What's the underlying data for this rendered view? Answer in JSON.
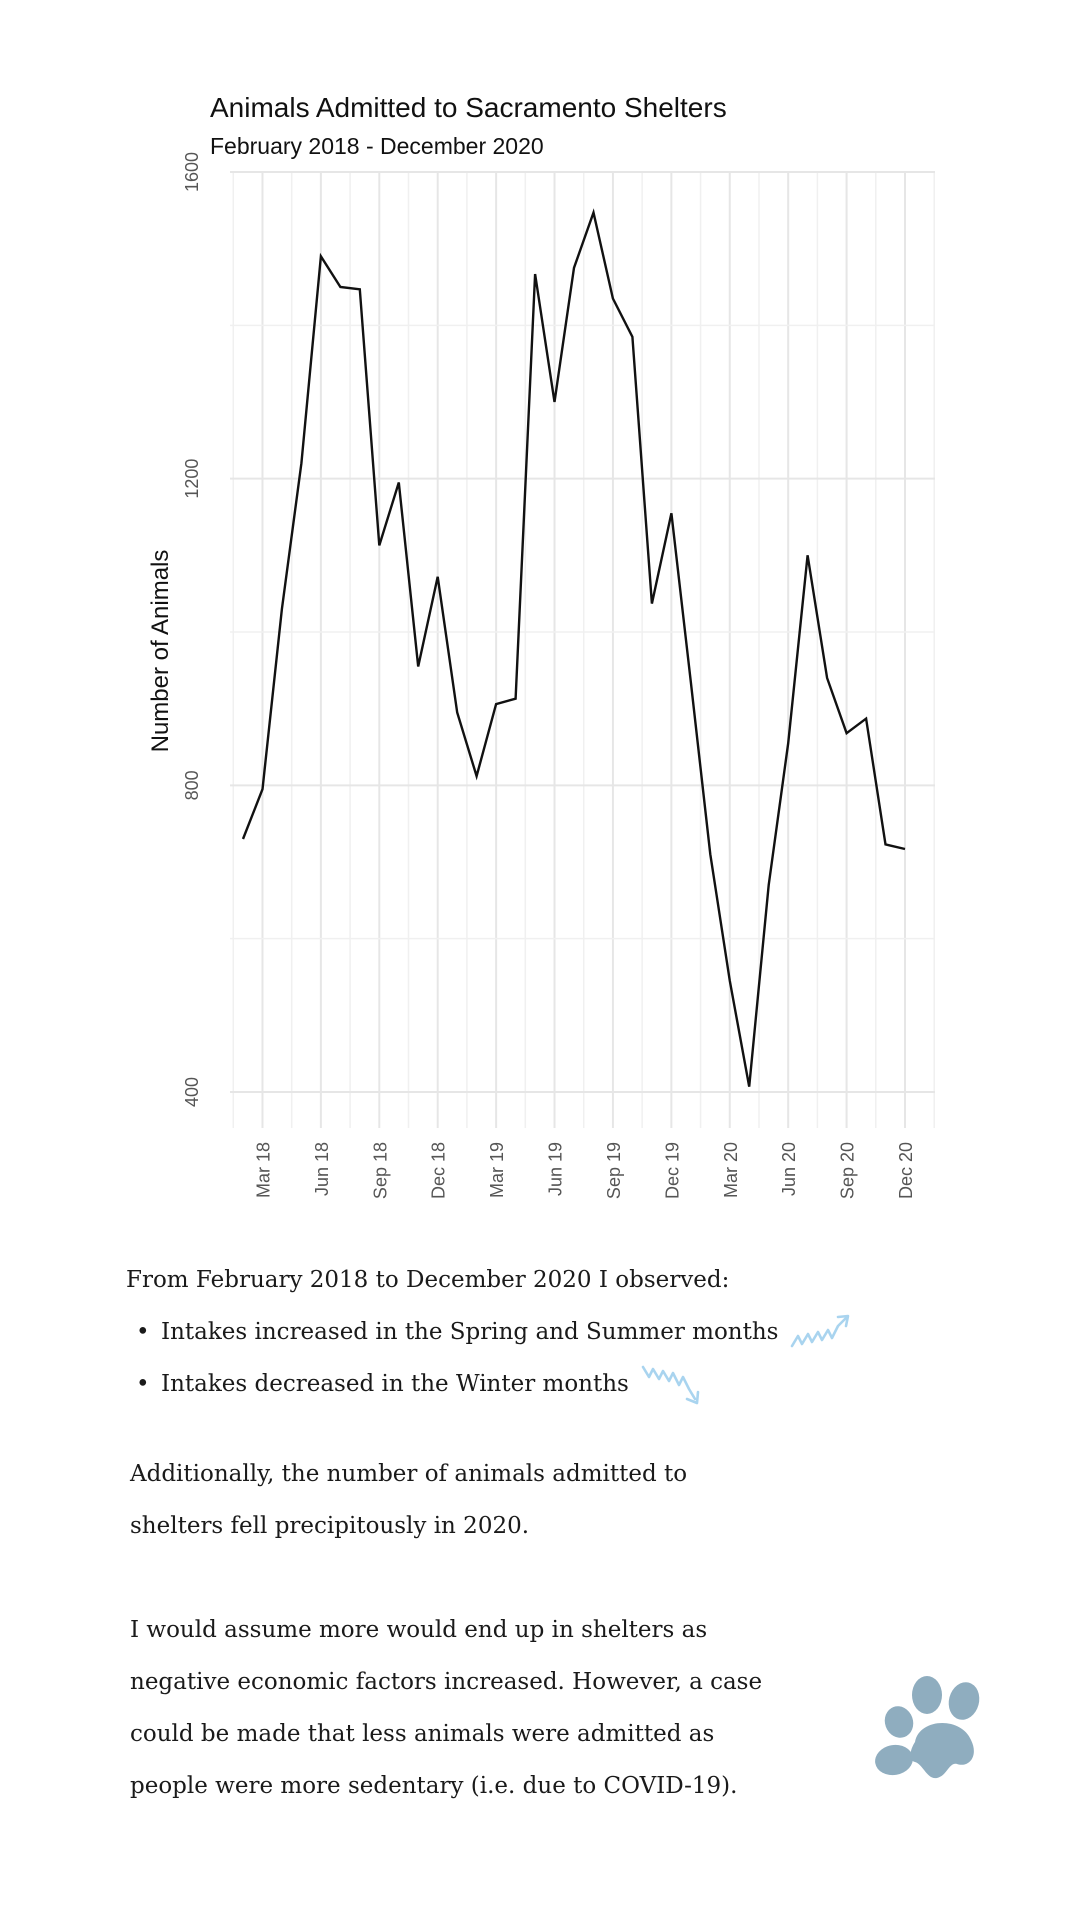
{
  "chart_data": {
    "type": "line",
    "title": "Animals Admitted to Sacramento Shelters",
    "subtitle": "February 2018 - December 2020",
    "ylabel": "Number of Animals",
    "xlabel": "",
    "ylim": [
      400,
      1600
    ],
    "yticks": [
      "400",
      "800",
      "1200",
      "1600"
    ],
    "xticks": [
      "Mar 18",
      "Jun 18",
      "Sep 18",
      "Dec 18",
      "Mar 19",
      "Jun 19",
      "Sep 19",
      "Dec 19",
      "Mar 20",
      "Jun 20",
      "Sep 20",
      "Dec 20"
    ],
    "grid": true,
    "legend": "none",
    "x": [
      "2018-02",
      "2018-03",
      "2018-04",
      "2018-05",
      "2018-06",
      "2018-07",
      "2018-08",
      "2018-09",
      "2018-10",
      "2018-11",
      "2018-12",
      "2019-01",
      "2019-02",
      "2019-03",
      "2019-04",
      "2019-05",
      "2019-06",
      "2019-07",
      "2019-08",
      "2019-09",
      "2019-10",
      "2019-11",
      "2019-12",
      "2020-01",
      "2020-02",
      "2020-03",
      "2020-04",
      "2020-05",
      "2020-06",
      "2020-07",
      "2020-08",
      "2020-09",
      "2020-10",
      "2020-11",
      "2020-12"
    ],
    "series": [
      {
        "values": [
          730,
          795,
          1030,
          1220,
          1490,
          1450,
          1447,
          1113,
          1195,
          955,
          1072,
          895,
          812,
          906,
          913,
          1467,
          1300,
          1475,
          1547,
          1435,
          1385,
          1037,
          1155,
          935,
          710,
          545,
          407,
          670,
          855,
          1100,
          940,
          868,
          887,
          723,
          717
        ]
      }
    ],
    "line_color": "#111111"
  },
  "text": {
    "intro": "From February 2018 to December 2020 I observed:",
    "bullets": [
      "Intakes increased in the Spring and Summer months",
      "Intakes decreased in the Winter months"
    ],
    "para1": [
      "Additionally, the number of animals admitted to",
      "shelters fell precipitously in 2020."
    ],
    "para2": [
      "I would assume more would end up in shelters as",
      "negative economic factors increased. However, a case",
      "could be made that less animals were admitted as",
      "people were more sedentary (i.e. due to COVID-19)."
    ]
  },
  "icons": {
    "up_trend": "zigzag-up-arrow-icon",
    "down_trend": "zigzag-down-arrow-icon",
    "paw": "paw-print-icon"
  },
  "colors": {
    "trend_arrow": "#a9d4ef",
    "paw": "#8fadbf"
  }
}
